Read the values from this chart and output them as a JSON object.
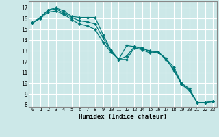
{
  "xlabel": "Humidex (Indice chaleur)",
  "background_color": "#cce8e8",
  "grid_color": "#ffffff",
  "line_color": "#007878",
  "xlim": [
    -0.5,
    23.5
  ],
  "ylim": [
    7.8,
    17.6
  ],
  "yticks": [
    8,
    9,
    10,
    11,
    12,
    13,
    14,
    15,
    16,
    17
  ],
  "xticks": [
    0,
    1,
    2,
    3,
    4,
    5,
    6,
    7,
    8,
    9,
    10,
    11,
    12,
    13,
    14,
    15,
    16,
    17,
    18,
    19,
    20,
    21,
    22,
    23
  ],
  "series": [
    [
      15.6,
      16.1,
      16.8,
      17.0,
      16.7,
      16.2,
      16.1,
      16.1,
      16.1,
      14.5,
      13.1,
      12.2,
      13.5,
      13.4,
      13.3,
      12.9,
      12.9,
      12.3,
      11.2,
      9.9,
      9.4,
      8.2,
      8.2,
      8.3
    ],
    [
      15.6,
      16.1,
      16.75,
      16.9,
      16.5,
      16.1,
      15.8,
      15.7,
      15.5,
      14.2,
      13.0,
      12.2,
      12.5,
      13.4,
      13.2,
      13.0,
      12.9,
      12.3,
      11.5,
      10.0,
      9.5,
      8.2,
      8.2,
      8.3
    ],
    [
      15.6,
      16.0,
      16.6,
      16.7,
      16.4,
      15.9,
      15.5,
      15.3,
      15.0,
      13.8,
      12.9,
      12.2,
      12.2,
      13.3,
      13.1,
      12.8,
      12.9,
      12.2,
      11.3,
      9.9,
      9.3,
      8.2,
      8.2,
      8.3
    ]
  ]
}
